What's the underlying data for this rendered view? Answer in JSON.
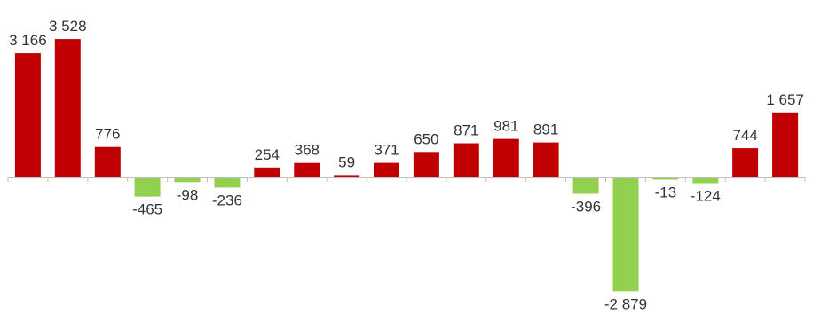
{
  "chart_data": {
    "type": "bar",
    "categories": [
      "",
      "",
      "",
      "",
      "",
      "",
      "",
      "",
      "",
      "",
      "",
      "",
      "",
      "",
      "",
      "",
      "",
      "",
      "",
      ""
    ],
    "values": [
      3166,
      3528,
      776,
      -465,
      -98,
      -236,
      254,
      368,
      59,
      371,
      650,
      871,
      981,
      891,
      -396,
      -2879,
      -13,
      -124,
      744,
      1657
    ],
    "labels": [
      "3 166",
      "3 528",
      "776",
      "-465",
      "-98",
      "-236",
      "254",
      "368",
      "59",
      "371",
      "650",
      "871",
      "981",
      "891",
      "-396",
      "-2 879",
      "-13",
      "-124",
      "744",
      "1 657"
    ],
    "title": "",
    "xlabel": "",
    "ylabel": "",
    "ylim": [
      -2879,
      3528
    ],
    "grid": false,
    "colors": {
      "positive": "#c00000",
      "negative": "#92d050",
      "axis": "#bfbfbf"
    }
  }
}
